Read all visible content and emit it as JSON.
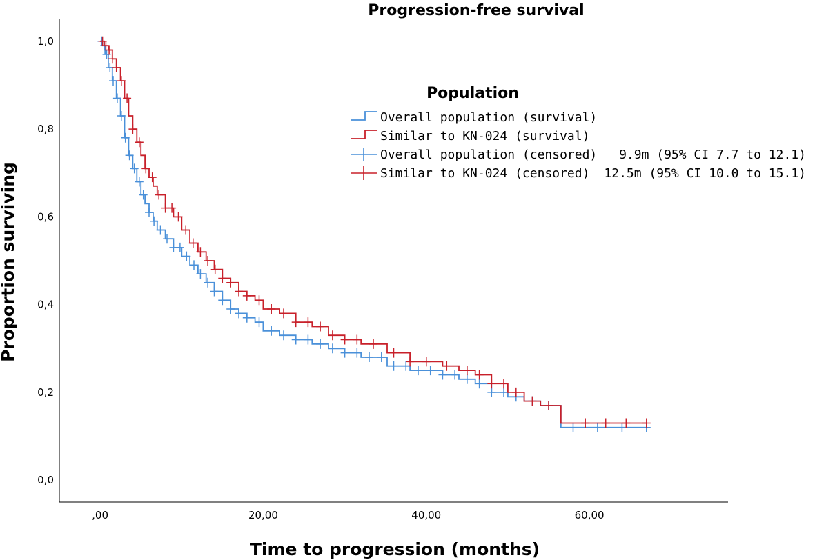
{
  "chart_data": {
    "type": "line",
    "title": "Progression-free survival",
    "xlabel": "Time to progression (months)",
    "ylabel": "Proportion surviving",
    "xlim": [
      -5,
      77
    ],
    "ylim": [
      -0.05,
      1.05
    ],
    "x_ticks": [
      {
        "value": 0,
        "label": ",00"
      },
      {
        "value": 20,
        "label": "20,00"
      },
      {
        "value": 40,
        "label": "40,00"
      },
      {
        "value": 60,
        "label": "60,00"
      }
    ],
    "y_ticks": [
      {
        "value": 0.0,
        "label": "0,0"
      },
      {
        "value": 0.2,
        "label": "0,2"
      },
      {
        "value": 0.4,
        "label": "0,4"
      },
      {
        "value": 0.6,
        "label": "0,6"
      },
      {
        "value": 0.8,
        "label": "0,8"
      },
      {
        "value": 1.0,
        "label": "1,0"
      }
    ],
    "legend": {
      "title": "Population",
      "position": "top-right",
      "entries": [
        {
          "label": "Overall population (survival)",
          "color": "#4a90d9",
          "kind": "step"
        },
        {
          "label": "Similar to KN-024 (survival)",
          "color": "#c8202a",
          "kind": "step"
        },
        {
          "label": "Overall population (censored)",
          "color": "#4a90d9",
          "kind": "cross",
          "annotation": "9.9m (95% CI 7.7 to 12.1)"
        },
        {
          "label": "Similar to KN-024 (censored)",
          "color": "#c8202a",
          "kind": "cross",
          "annotation": "12.5m (95% CI 10.0 to 15.1)"
        }
      ]
    },
    "series": [
      {
        "name": "Overall population",
        "color": "#4a90d9",
        "x": [
          0,
          0.3,
          0.6,
          1.0,
          1.5,
          2.0,
          2.5,
          3.0,
          3.5,
          4.0,
          4.5,
          5.0,
          5.5,
          6.0,
          6.5,
          7.0,
          8.0,
          9.0,
          10.0,
          11.0,
          12.0,
          13.0,
          14.0,
          15.0,
          16.0,
          17.0,
          18.0,
          19.0,
          20.0,
          22.0,
          24.0,
          26.0,
          28.0,
          30.0,
          32.0,
          34.0,
          35.2,
          38.0,
          40.0,
          42.0,
          44.0,
          46.0,
          48.0,
          50.0,
          52.0,
          54.0,
          56.5,
          60.0,
          67.0
        ],
        "y": [
          1.0,
          0.99,
          0.97,
          0.94,
          0.91,
          0.87,
          0.83,
          0.78,
          0.74,
          0.71,
          0.68,
          0.65,
          0.63,
          0.61,
          0.59,
          0.57,
          0.55,
          0.53,
          0.51,
          0.49,
          0.47,
          0.45,
          0.43,
          0.41,
          0.39,
          0.38,
          0.37,
          0.36,
          0.34,
          0.33,
          0.32,
          0.31,
          0.3,
          0.29,
          0.28,
          0.28,
          0.26,
          0.25,
          0.25,
          0.24,
          0.23,
          0.22,
          0.2,
          0.19,
          0.18,
          0.17,
          0.12,
          0.12,
          0.12
        ],
        "censor_x": [
          0.2,
          0.5,
          0.8,
          1.2,
          1.6,
          2.1,
          2.6,
          3.1,
          3.6,
          4.2,
          4.8,
          5.3,
          6.0,
          6.6,
          7.4,
          8.2,
          9.0,
          9.8,
          10.6,
          11.5,
          12.3,
          13.2,
          14.0,
          15.0,
          16.0,
          17.0,
          18.0,
          19.5,
          21.0,
          22.5,
          24.0,
          25.5,
          27.0,
          28.5,
          30.0,
          31.5,
          33.0,
          34.5,
          36.0,
          37.5,
          39.0,
          40.5,
          42.0,
          43.5,
          45.0,
          46.5,
          48.0,
          49.5,
          51.0,
          53.0,
          55.0,
          58.0,
          61.0,
          64.0,
          67.0
        ]
      },
      {
        "name": "Similar to KN-024",
        "color": "#c8202a",
        "x": [
          0,
          0.5,
          1.0,
          1.5,
          2.0,
          2.5,
          3.0,
          3.5,
          4.0,
          4.5,
          5.0,
          5.5,
          6.0,
          6.5,
          7.0,
          8.0,
          9.0,
          10.0,
          11.0,
          12.0,
          13.0,
          14.0,
          15.0,
          16.0,
          17.0,
          18.0,
          19.0,
          20.0,
          22.0,
          24.0,
          26.0,
          28.0,
          30.0,
          32.0,
          33.0,
          35.2,
          38.0,
          40.0,
          42.0,
          44.0,
          46.0,
          48.0,
          50.0,
          52.0,
          54.0,
          56.5,
          60.0,
          67.0
        ],
        "y": [
          1.0,
          0.99,
          0.98,
          0.96,
          0.94,
          0.91,
          0.87,
          0.83,
          0.8,
          0.77,
          0.74,
          0.71,
          0.69,
          0.67,
          0.65,
          0.62,
          0.6,
          0.57,
          0.54,
          0.52,
          0.5,
          0.48,
          0.46,
          0.45,
          0.43,
          0.42,
          0.41,
          0.39,
          0.38,
          0.36,
          0.35,
          0.33,
          0.32,
          0.31,
          0.31,
          0.29,
          0.27,
          0.27,
          0.26,
          0.25,
          0.24,
          0.22,
          0.2,
          0.18,
          0.17,
          0.13,
          0.13,
          0.13
        ],
        "censor_x": [
          0.3,
          0.7,
          1.1,
          1.5,
          2.0,
          2.6,
          3.3,
          4.0,
          4.8,
          5.6,
          6.4,
          7.2,
          8.0,
          8.8,
          9.6,
          10.5,
          11.4,
          12.3,
          13.2,
          14.1,
          15.0,
          16.0,
          17.0,
          18.0,
          19.5,
          21.0,
          22.5,
          24.0,
          25.5,
          27.0,
          28.5,
          30.0,
          31.5,
          33.5,
          36.0,
          38.0,
          40.0,
          42.5,
          45.0,
          46.5,
          48.0,
          49.5,
          51.0,
          53.0,
          55.0,
          59.5,
          62.0,
          64.5,
          67.0
        ]
      }
    ]
  }
}
